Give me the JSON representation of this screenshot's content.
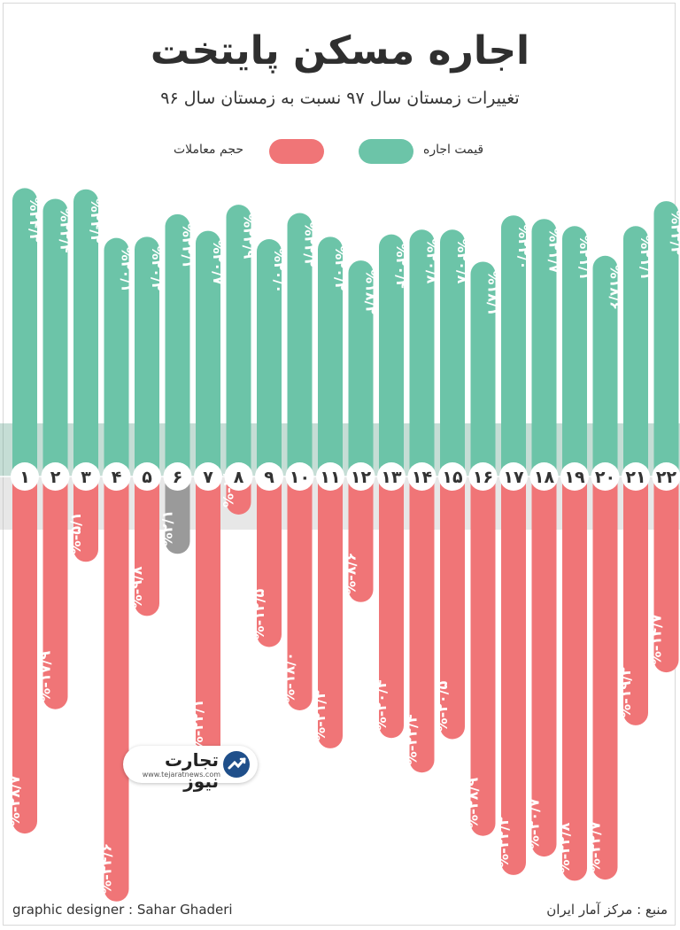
{
  "title": "اجاره مسکن پایتخت",
  "subtitle": "تغییرات زمستان سال ۹۷ نسبت به زمستان سال ۹۶",
  "legend": {
    "rent_label": "قیمت اجاره",
    "volume_label": "حجم معاملات",
    "rent_color": "#6cc4a8",
    "volume_color": "#f07577"
  },
  "brand": {
    "name": "تجارت نیوز",
    "url": "www.tejaratnews.com",
    "icon": "tejaratnews-logo-icon"
  },
  "footer": {
    "designer": "graphic designer : Sahar Ghaderi",
    "source": "منبع : مرکز آمار ایران"
  },
  "chart_data": {
    "type": "bar",
    "categories": [
      "۱",
      "۲",
      "۳",
      "۴",
      "۵",
      "۶",
      "۷",
      "۸",
      "۹",
      "۱۰",
      "۱۱",
      "۱۲",
      "۱۳",
      "۱۴",
      "۱۵",
      "۱۶",
      "۱۷",
      "۱۸",
      "۱۹",
      "۲۰",
      "۲۱",
      "۲۲"
    ],
    "series": [
      {
        "name": "قیمت اجاره",
        "values": [
          24.3,
          23.4,
          24.2,
          20.1,
          20.2,
          22.1,
          20.7,
          22.9,
          20.0,
          22.2,
          20.2,
          18.2,
          20.4,
          20.8,
          20.8,
          18.1,
          22.0,
          21.7,
          21.1,
          18.6,
          21.1,
          23.2
        ],
        "labels": [
          "%۲۴/۳",
          "%۲۳/۴",
          "%۲۴/۲",
          "%۲۰/۱",
          "%۲۰/۲",
          "%۲۲/۱",
          "%۲۰/۷",
          "%۲۲/۹",
          "%۲۰/۰",
          "%۲۲/۲",
          "%۲۰/۲",
          "%۱۸/۲",
          "%۲۰/۴",
          "%۲۰/۸",
          "%۲۰/۸",
          "%۱۸/۱",
          "%۲۲/۰",
          "%۲۱/۷",
          "%۲۱/۱",
          "%۱۸/۶",
          "%۲۱/۱",
          "%۲۳/۲"
        ]
      },
      {
        "name": "حجم معاملات",
        "values": [
          -28.7,
          -17.9,
          -5.1,
          -34.6,
          -9.8,
          2.1,
          -22.1,
          -1.0,
          -12.5,
          -18.0,
          -21.3,
          -8.6,
          -20.4,
          -23.4,
          -20.5,
          -28.9,
          -32.3,
          -30.7,
          -32.8,
          -32.7,
          -19.3,
          -14.7
        ],
        "labels": [
          "%-۲۸/۷",
          "%-۱۷/۹",
          "%-۵/۱",
          "%-۳۴/۶",
          "%-۹/۸",
          "%۲/۱",
          "%-۲۲/۱",
          "%-۱/۰",
          "%-۱۲/۵",
          "%-۱۸/۰",
          "%-۲۱/۳",
          "%-۸/۶",
          "%-۲۰/۴",
          "%-۲۳/۴",
          "%-۲۰/۵",
          "%-۲۸/۹",
          "%-۳۲/۳",
          "%-۳۰/۷",
          "%-۳۲/۸",
          "%-۳۲/۷",
          "%-۱۹/۳",
          "%-۱۴/۷"
        ]
      }
    ]
  }
}
